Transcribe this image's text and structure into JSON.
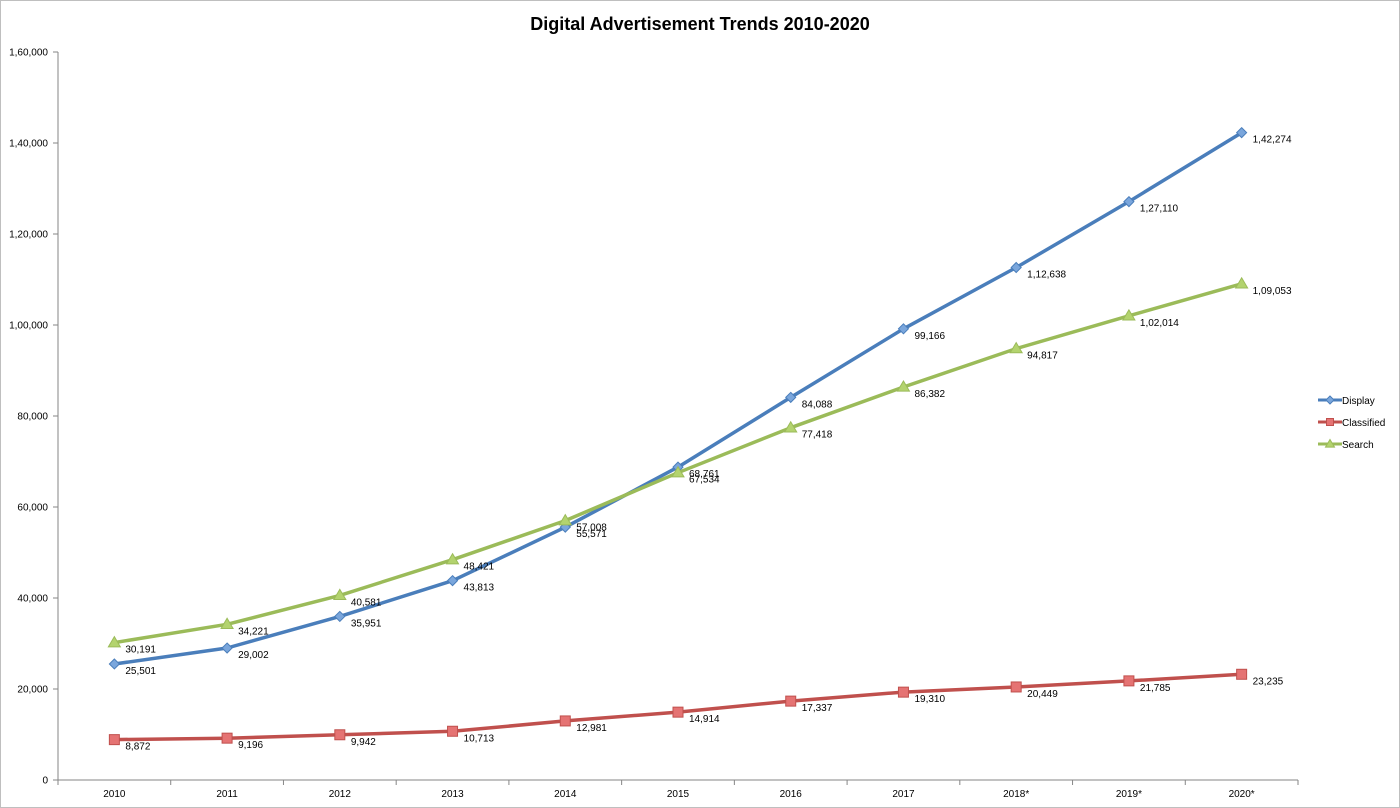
{
  "chart_data": {
    "type": "line",
    "title": "Digital Advertisement Trends 2010-2020",
    "categories": [
      "2010",
      "2011",
      "2012",
      "2013",
      "2014",
      "2015",
      "2016",
      "2017",
      "2018*",
      "2019*",
      "2020*"
    ],
    "y_ticks": [
      "0",
      "20,000",
      "40,000",
      "60,000",
      "80,000",
      "1,00,000",
      "1,20,000",
      "1,40,000",
      "1,60,000"
    ],
    "ylim": [
      0,
      160000
    ],
    "grid": false,
    "legend_position": "right",
    "series": [
      {
        "name": "Display",
        "color": "#4a7ebb",
        "marker_color": "#7aa6dc",
        "marker": "diamond",
        "values": [
          25501,
          29002,
          35951,
          43813,
          55571,
          68761,
          84088,
          99166,
          112638,
          127110,
          142274
        ],
        "labels": [
          "25,501",
          "29,002",
          "35,951",
          "43,813",
          "55,571",
          "68,761",
          "84,088",
          "99,166",
          "1,12,638",
          "1,27,110",
          "1,42,274"
        ]
      },
      {
        "name": "Classified",
        "color": "#c0504d",
        "marker_color": "#e57373",
        "marker": "square",
        "values": [
          8872,
          9196,
          9942,
          10713,
          12981,
          14914,
          17337,
          19310,
          20449,
          21785,
          23235
        ],
        "labels": [
          "8,872",
          "9,196",
          "9,942",
          "10,713",
          "12,981",
          "14,914",
          "17,337",
          "19,310",
          "20,449",
          "21,785",
          "23,235"
        ]
      },
      {
        "name": "Search",
        "color": "#9bbb59",
        "marker_color": "#b3d36e",
        "marker": "triangle",
        "values": [
          30191,
          34221,
          40581,
          48421,
          57008,
          67534,
          77418,
          86382,
          94817,
          102014,
          109053
        ],
        "labels": [
          "30,191",
          "34,221",
          "40,581",
          "48,421",
          "57,008",
          "67,534",
          "77,418",
          "86,382",
          "94,817",
          "1,02,014",
          "1,09,053"
        ]
      }
    ]
  }
}
